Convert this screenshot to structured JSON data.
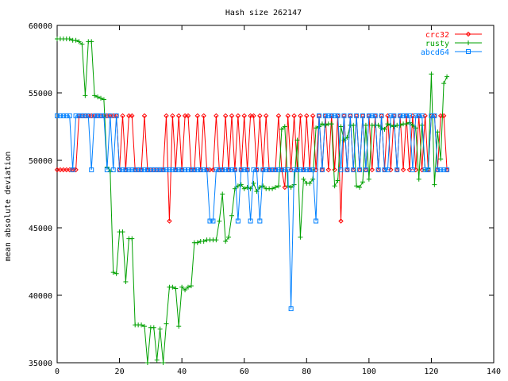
{
  "chart_data": {
    "type": "line",
    "title": "Hash size 262147",
    "xlabel": "",
    "ylabel": "mean absolute deviation",
    "xlim": [
      0,
      140
    ],
    "ylim": [
      35000,
      60000
    ],
    "xticks": [
      0,
      20,
      40,
      60,
      80,
      100,
      120,
      140
    ],
    "yticks": [
      35000,
      40000,
      45000,
      50000,
      55000,
      60000
    ],
    "grid": false,
    "legend_position": "top-right",
    "series": [
      {
        "name": "crc32",
        "color": "#ff0000",
        "marker": "diamond",
        "x": [
          0,
          1,
          2,
          3,
          4,
          5,
          6,
          7,
          8,
          9,
          10,
          11,
          12,
          13,
          14,
          15,
          16,
          17,
          18,
          19,
          20,
          21,
          22,
          23,
          24,
          25,
          26,
          27,
          28,
          29,
          30,
          31,
          32,
          33,
          34,
          35,
          36,
          37,
          38,
          39,
          40,
          41,
          42,
          43,
          44,
          45,
          46,
          47,
          48,
          49,
          50,
          51,
          52,
          53,
          54,
          55,
          56,
          57,
          58,
          59,
          60,
          61,
          62,
          63,
          64,
          65,
          66,
          67,
          68,
          69,
          70,
          71,
          72,
          73,
          74,
          75,
          76,
          77,
          78,
          79,
          80,
          81,
          82,
          83,
          84,
          85,
          86,
          87,
          88,
          89,
          90,
          91,
          92,
          93,
          94,
          95,
          96,
          97,
          98,
          99,
          100,
          101,
          102,
          103,
          104,
          105,
          106,
          107,
          108,
          109,
          110,
          111,
          112,
          113,
          114,
          115,
          116,
          117,
          118,
          119,
          120,
          121,
          122,
          123,
          124,
          125
        ],
        "y": [
          49300,
          49300,
          49300,
          49300,
          49300,
          49300,
          49300,
          53300,
          53300,
          53300,
          53300,
          53300,
          53300,
          53300,
          53300,
          53300,
          53300,
          53300,
          53300,
          53300,
          49300,
          53300,
          49300,
          53300,
          53300,
          49300,
          49300,
          49300,
          53300,
          49300,
          49300,
          49300,
          49300,
          49300,
          49300,
          53300,
          45500,
          53300,
          49300,
          53300,
          49300,
          53300,
          53300,
          49300,
          49300,
          53300,
          49300,
          53300,
          49300,
          49300,
          49300,
          53300,
          49300,
          49300,
          53300,
          49300,
          53300,
          49300,
          53300,
          49300,
          53300,
          49300,
          53300,
          53300,
          49300,
          53300,
          49300,
          53300,
          49300,
          49300,
          49300,
          53300,
          49300,
          48000,
          53300,
          49300,
          53300,
          49300,
          53300,
          49300,
          53300,
          49300,
          53300,
          49300,
          53300,
          49300,
          53300,
          49300,
          53300,
          49300,
          53300,
          45500,
          53300,
          49300,
          53300,
          49300,
          53300,
          49300,
          53300,
          49300,
          53300,
          49300,
          53300,
          49300,
          53300,
          49300,
          53300,
          49300,
          53300,
          49300,
          53300,
          49300,
          53300,
          49300,
          53300,
          49300,
          53300,
          49300,
          53300,
          49300,
          53300,
          53300,
          49300,
          53300,
          53300,
          49300
        ]
      },
      {
        "name": "rusty",
        "color": "#00a000",
        "marker": "plus",
        "x": [
          0,
          1,
          2,
          3,
          4,
          5,
          6,
          7,
          8,
          9,
          10,
          11,
          12,
          13,
          14,
          15,
          16,
          17,
          18,
          19,
          20,
          21,
          22,
          23,
          24,
          25,
          26,
          27,
          28,
          29,
          30,
          31,
          32,
          33,
          34,
          35,
          36,
          37,
          38,
          39,
          40,
          41,
          42,
          43,
          44,
          45,
          46,
          47,
          48,
          49,
          50,
          51,
          52,
          53,
          54,
          55,
          56,
          57,
          58,
          59,
          60,
          61,
          62,
          63,
          64,
          65,
          66,
          67,
          68,
          69,
          70,
          71,
          72,
          73,
          74,
          75,
          76,
          77,
          78,
          79,
          80,
          81,
          82,
          83,
          84,
          85,
          86,
          87,
          88,
          89,
          90,
          91,
          92,
          93,
          94,
          95,
          96,
          97,
          98,
          99,
          100,
          101,
          102,
          103,
          104,
          105,
          106,
          107,
          108,
          109,
          110,
          111,
          112,
          113,
          114,
          115,
          116,
          117,
          118,
          119,
          120,
          121,
          122,
          123,
          124,
          125
        ],
        "y": [
          59000,
          59000,
          59000,
          59000,
          59000,
          58900,
          58900,
          58800,
          58600,
          54800,
          58800,
          58800,
          54800,
          54700,
          54600,
          54500,
          49500,
          49200,
          41700,
          41600,
          44700,
          44700,
          41000,
          44200,
          44200,
          37800,
          37800,
          37800,
          37700,
          35000,
          37600,
          37600,
          35200,
          37500,
          35000,
          37900,
          40600,
          40600,
          40500,
          37700,
          40600,
          40400,
          40600,
          40700,
          43900,
          43900,
          44000,
          44000,
          44100,
          44100,
          44100,
          44100,
          45500,
          47500,
          44000,
          44300,
          45900,
          47900,
          48100,
          48200,
          47900,
          48000,
          47900,
          48300,
          47700,
          48000,
          48100,
          47900,
          47900,
          47900,
          48000,
          48100,
          52300,
          52500,
          48100,
          48000,
          48200,
          51500,
          44300,
          48600,
          48300,
          48300,
          48600,
          52400,
          52500,
          52700,
          52600,
          52700,
          52700,
          48100,
          48500,
          52500,
          51500,
          51700,
          52600,
          52600,
          48100,
          48000,
          48400,
          52600,
          48600,
          52600,
          52600,
          52600,
          52400,
          52300,
          52700,
          52600,
          52500,
          52600,
          52600,
          52700,
          52700,
          52800,
          52600,
          52400,
          48600,
          52600,
          49300,
          49400,
          56400,
          48200,
          52100,
          50100,
          55700,
          56200
        ]
      },
      {
        "name": "abcd64",
        "color": "#0080ff",
        "marker": "square",
        "x": [
          0,
          1,
          2,
          3,
          4,
          5,
          6,
          7,
          8,
          9,
          10,
          11,
          12,
          13,
          14,
          15,
          16,
          17,
          18,
          19,
          20,
          21,
          22,
          23,
          24,
          25,
          26,
          27,
          28,
          29,
          30,
          31,
          32,
          33,
          34,
          35,
          36,
          37,
          38,
          39,
          40,
          41,
          42,
          43,
          44,
          45,
          46,
          47,
          48,
          49,
          50,
          51,
          52,
          53,
          54,
          55,
          56,
          57,
          58,
          59,
          60,
          61,
          62,
          63,
          64,
          65,
          66,
          67,
          68,
          69,
          70,
          71,
          72,
          73,
          74,
          75,
          76,
          77,
          78,
          79,
          80,
          81,
          82,
          83,
          84,
          85,
          86,
          87,
          88,
          89,
          90,
          91,
          92,
          93,
          94,
          95,
          96,
          97,
          98,
          99,
          100,
          101,
          102,
          103,
          104,
          105,
          106,
          107,
          108,
          109,
          110,
          111,
          112,
          113,
          114,
          115,
          116,
          117,
          118,
          119,
          120,
          121,
          122,
          123,
          124,
          125
        ],
        "y": [
          53300,
          53300,
          53300,
          53300,
          53300,
          49300,
          53300,
          53300,
          53300,
          53300,
          53300,
          49300,
          53300,
          53300,
          53300,
          53300,
          49300,
          53300,
          49300,
          53300,
          49300,
          49300,
          49300,
          49300,
          49300,
          49300,
          49300,
          49300,
          49300,
          49300,
          49300,
          49300,
          49300,
          49300,
          49300,
          49300,
          49300,
          49300,
          49300,
          49300,
          49300,
          49300,
          49300,
          49300,
          49300,
          49300,
          49300,
          49300,
          49300,
          45500,
          45500,
          49300,
          49300,
          49300,
          49300,
          49300,
          49300,
          49300,
          45500,
          49300,
          49300,
          49300,
          45500,
          49300,
          49300,
          45500,
          49300,
          49300,
          49300,
          49300,
          49300,
          49300,
          49300,
          49300,
          49300,
          39000,
          49300,
          49300,
          49300,
          49300,
          49300,
          49300,
          49300,
          45500,
          53300,
          49300,
          53300,
          53300,
          53300,
          53300,
          53300,
          49300,
          53300,
          49300,
          53300,
          49300,
          53300,
          49300,
          53300,
          49300,
          53300,
          53300,
          53300,
          49300,
          53300,
          49300,
          49300,
          53300,
          53300,
          49300,
          53300,
          53300,
          53300,
          53300,
          49300,
          53300,
          53300,
          53300,
          49300,
          49300,
          53300,
          53300,
          49300,
          49300,
          49300,
          49300
        ]
      }
    ]
  }
}
